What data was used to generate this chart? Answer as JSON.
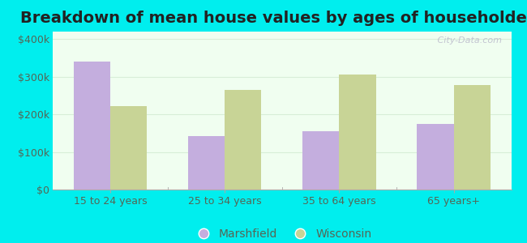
{
  "title": "Breakdown of mean house values by ages of householders",
  "categories": [
    "15 to 24 years",
    "25 to 34 years",
    "35 to 64 years",
    "65 years+"
  ],
  "marshfield_values": [
    340000,
    143000,
    155000,
    175000
  ],
  "wisconsin_values": [
    222000,
    265000,
    305000,
    278000
  ],
  "marshfield_color": "#c4aede",
  "wisconsin_color": "#c8d496",
  "bar_width": 0.32,
  "ylim": [
    0,
    420000
  ],
  "yticks": [
    0,
    100000,
    200000,
    300000,
    400000
  ],
  "ytick_labels": [
    "$0",
    "$100k",
    "$200k",
    "$300k",
    "$400k"
  ],
  "background_color": "#00eeee",
  "plot_bg_top": "#f0fef0",
  "plot_bg_bottom": "#e8fce8",
  "legend_labels": [
    "Marshfield",
    "Wisconsin"
  ],
  "watermark": " City-Data.com",
  "title_fontsize": 14,
  "axis_fontsize": 9,
  "legend_fontsize": 10,
  "tick_label_color": "#556655",
  "grid_color": "#d8eed8",
  "spine_color": "#aaaaaa"
}
